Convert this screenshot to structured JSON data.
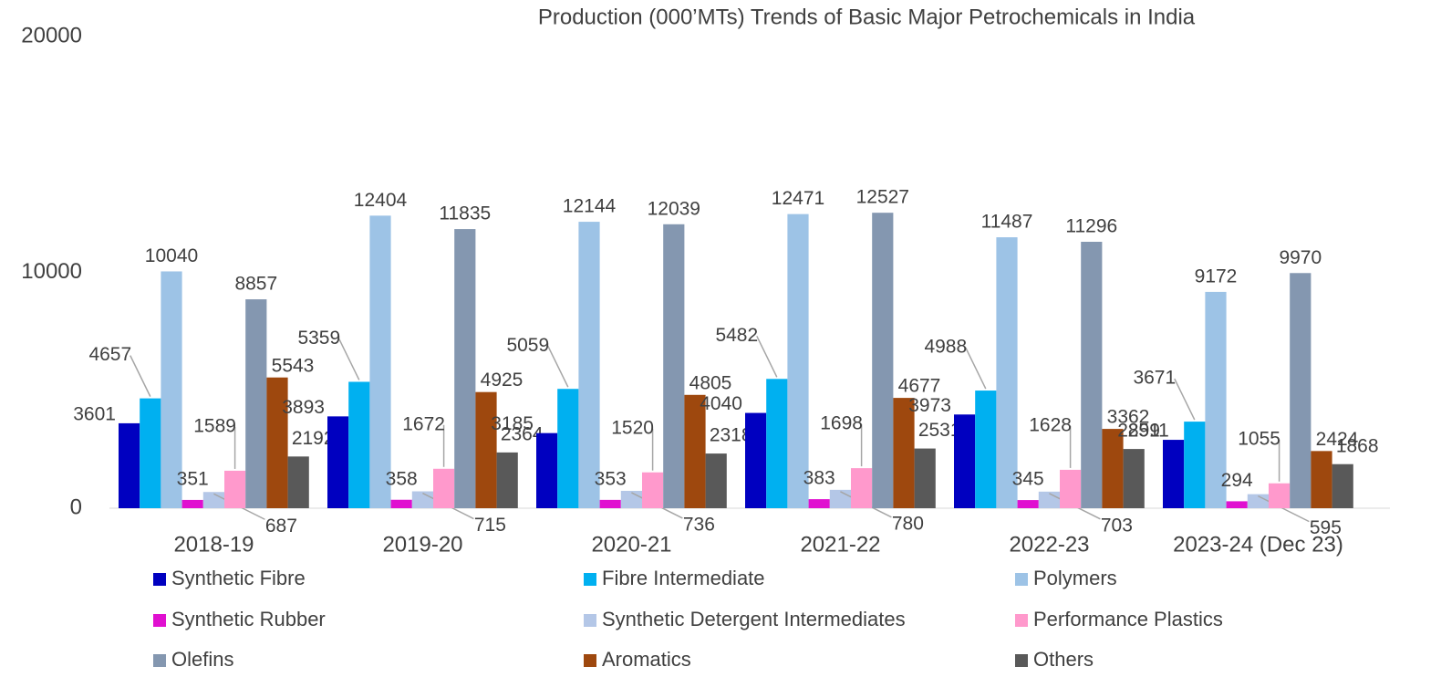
{
  "chart_data": {
    "type": "bar",
    "title": "Production (000’MTs) Trends of Basic Major Petrochemicals in India",
    "categories": [
      "2018-19",
      "2019-20",
      "2020-21",
      "2021-22",
      "2022-23",
      "2023-24 (Dec 23)"
    ],
    "series": [
      {
        "name": "Synthetic Fibre",
        "color": "#0000c0",
        "values": [
          3601,
          3893,
          3185,
          4040,
          3973,
          2899
        ]
      },
      {
        "name": "Fibre Intermediate",
        "color": "#00b0f0",
        "values": [
          4657,
          5359,
          5059,
          5482,
          4988,
          3671
        ]
      },
      {
        "name": "Polymers",
        "color": "#9dc3e6",
        "values": [
          10040,
          12404,
          12144,
          12471,
          11487,
          9172
        ]
      },
      {
        "name": "Synthetic Rubber",
        "color": "#e010d0",
        "values": [
          351,
          358,
          353,
          383,
          345,
          294
        ]
      },
      {
        "name": "Synthetic Detergent Intermediates",
        "color": "#b4c7e7",
        "values": [
          687,
          715,
          736,
          780,
          703,
          595
        ]
      },
      {
        "name": "Performance Plastics",
        "color": "#ff99cc",
        "values": [
          1589,
          1672,
          1520,
          1698,
          1628,
          1055
        ]
      },
      {
        "name": "Olefins",
        "color": "#8497b0",
        "values": [
          8857,
          11835,
          12039,
          12527,
          11296,
          9970
        ]
      },
      {
        "name": "Aromatics",
        "color": "#9e480e",
        "values": [
          5543,
          4925,
          4805,
          4677,
          3362,
          2424
        ]
      },
      {
        "name": "Others",
        "color": "#595959",
        "values": [
          2192,
          2364,
          2318,
          2531,
          2511,
          1868
        ]
      }
    ],
    "ylim": [
      0,
      20000
    ],
    "yticks": [
      0,
      10000,
      20000
    ],
    "grid": false
  }
}
